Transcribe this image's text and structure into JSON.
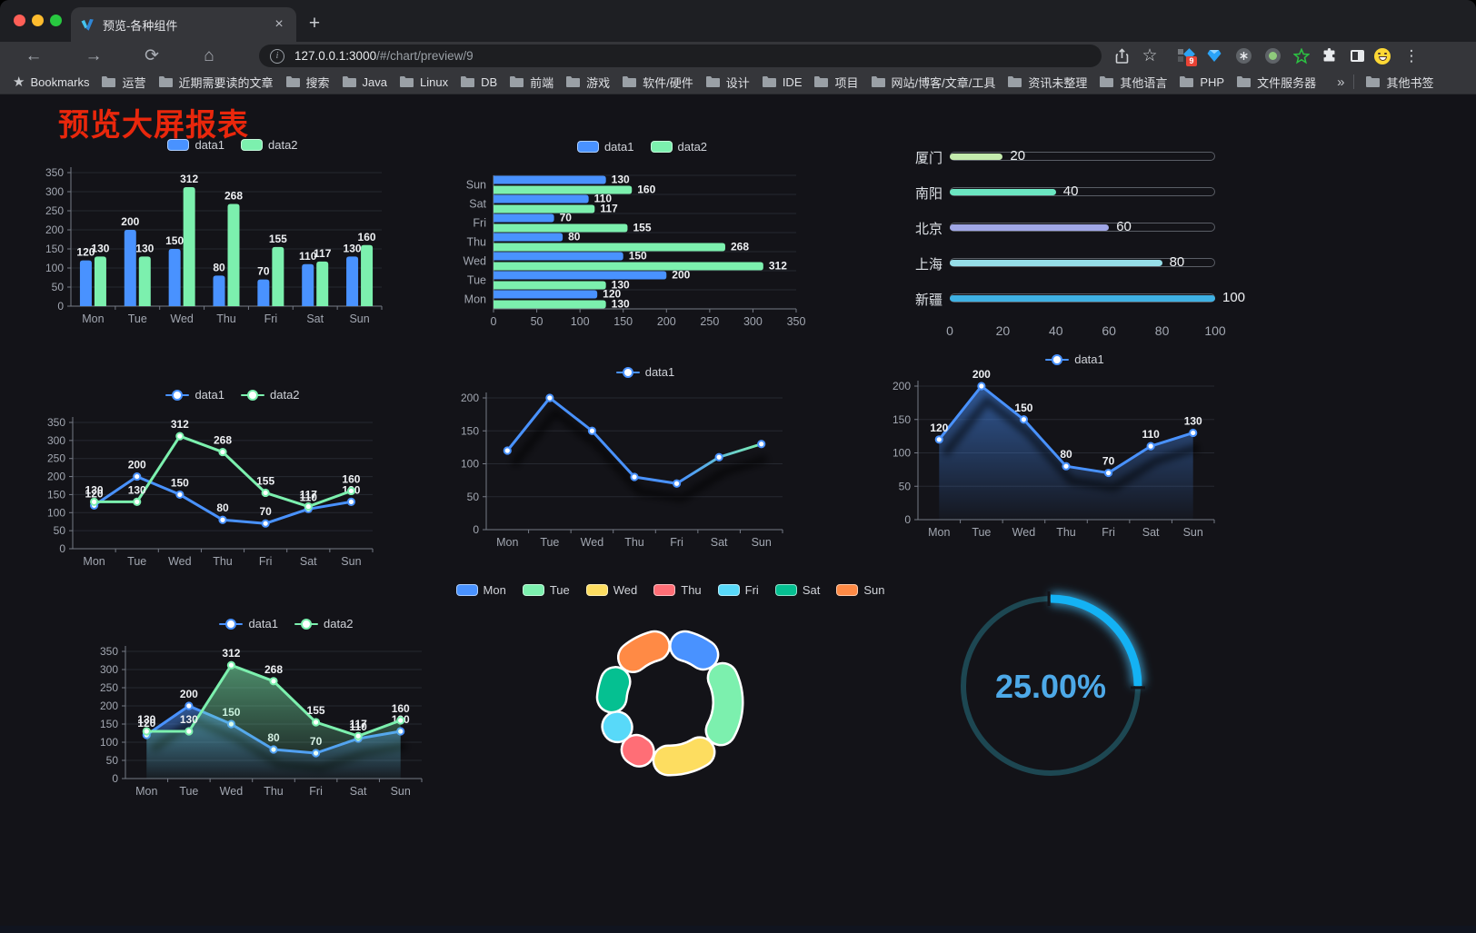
{
  "browser": {
    "tab_title": "预览-各种组件",
    "url_host": "127.0.0.1:3000",
    "url_path": "/#/chart/preview/9",
    "bookmarks_label": "Bookmarks",
    "bookmarks": [
      "运营",
      "近期需要读的文章",
      "搜索",
      "Java",
      "Linux",
      "DB",
      "前端",
      "游戏",
      "软件/硬件",
      "设计",
      "IDE",
      "项目",
      "网站/博客/文章/工具",
      "资讯未整理",
      "其他语言",
      "PHP",
      "文件服务器"
    ],
    "other_bookmarks_label": "其他书签",
    "extension_badge": "9",
    "icons": {
      "back": "←",
      "forward": "→",
      "reload": "⟳",
      "home": "⌂",
      "star": "☆",
      "kebab": "⋮",
      "plus": "+",
      "close": "×",
      "overflow": "»",
      "info": "i"
    }
  },
  "page": {
    "title": "预览大屏报表",
    "title_color": "#e9270c",
    "background": "#131318"
  },
  "palette": {
    "data1": "#4992ff",
    "data2": "#7cf0ae",
    "axis_text": "#a2a7b1",
    "value_text": "#eef0f3"
  },
  "charts": [
    {
      "id": "c1",
      "type": "bar-v",
      "categories": [
        "Mon",
        "Tue",
        "Wed",
        "Thu",
        "Fri",
        "Sat",
        "Sun"
      ],
      "series": [
        {
          "name": "data1",
          "color": "#4992ff",
          "values": [
            120,
            200,
            150,
            80,
            70,
            110,
            130
          ]
        },
        {
          "name": "data2",
          "color": "#7cf0ae",
          "values": [
            130,
            130,
            312,
            268,
            155,
            117,
            160
          ]
        }
      ],
      "ymax": 350,
      "yticks": [
        0,
        50,
        100,
        150,
        200,
        250,
        300,
        350
      ]
    },
    {
      "id": "c2",
      "type": "bar-h",
      "categories": [
        "Mon",
        "Tue",
        "Wed",
        "Thu",
        "Fri",
        "Sat",
        "Sun"
      ],
      "series": [
        {
          "name": "data1",
          "color": "#4992ff",
          "values": [
            120,
            200,
            150,
            80,
            70,
            110,
            130
          ]
        },
        {
          "name": "data2",
          "color": "#7cf0ae",
          "values": [
            130,
            130,
            312,
            268,
            155,
            117,
            160
          ]
        }
      ],
      "xmax": 350,
      "xticks": [
        0,
        50,
        100,
        150,
        200,
        250,
        300,
        350
      ]
    },
    {
      "id": "c3",
      "type": "progress",
      "max": 100,
      "xticks": [
        0,
        20,
        40,
        60,
        80,
        100
      ],
      "rows": [
        {
          "label": "厦门",
          "value": 20,
          "color": "#c4ebad"
        },
        {
          "label": "南阳",
          "value": 40,
          "color": "#6be6c1"
        },
        {
          "label": "北京",
          "value": 60,
          "color": "#a0a7e6"
        },
        {
          "label": "上海",
          "value": 80,
          "color": "#96dee8"
        },
        {
          "label": "新疆",
          "value": 100,
          "color": "#3fb1e3"
        }
      ]
    },
    {
      "id": "c4",
      "type": "line",
      "categories": [
        "Mon",
        "Tue",
        "Wed",
        "Thu",
        "Fri",
        "Sat",
        "Sun"
      ],
      "series": [
        {
          "name": "data1",
          "color": "#4992ff",
          "values": [
            120,
            200,
            150,
            80,
            70,
            110,
            130
          ],
          "labels": true
        },
        {
          "name": "data2",
          "color": "#7cf0ae",
          "values": [
            130,
            130,
            312,
            268,
            155,
            117,
            160
          ],
          "labels": true
        }
      ],
      "ymax": 350,
      "yticks": [
        0,
        50,
        100,
        150,
        200,
        250,
        300,
        350
      ]
    },
    {
      "id": "c5",
      "type": "line",
      "categories": [
        "Mon",
        "Tue",
        "Wed",
        "Thu",
        "Fri",
        "Sat",
        "Sun"
      ],
      "series": [
        {
          "name": "data1",
          "color": "#4992ff",
          "gradient_to": "#7cf0ae",
          "values": [
            120,
            200,
            150,
            80,
            70,
            110,
            130
          ],
          "labels": false,
          "shadow": true
        }
      ],
      "ymax": 200,
      "yticks": [
        0,
        50,
        100,
        150,
        200
      ]
    },
    {
      "id": "c6",
      "type": "line",
      "categories": [
        "Mon",
        "Tue",
        "Wed",
        "Thu",
        "Fri",
        "Sat",
        "Sun"
      ],
      "series": [
        {
          "name": "data1",
          "color": "#4992ff",
          "values": [
            120,
            200,
            150,
            80,
            70,
            110,
            130
          ],
          "labels": true,
          "area": true,
          "shadow": true
        }
      ],
      "ymax": 200,
      "yticks": [
        0,
        50,
        100,
        150,
        200
      ]
    },
    {
      "id": "c7",
      "type": "line",
      "categories": [
        "Mon",
        "Tue",
        "Wed",
        "Thu",
        "Fri",
        "Sat",
        "Sun"
      ],
      "series": [
        {
          "name": "data1",
          "color": "#4992ff",
          "values": [
            120,
            200,
            150,
            80,
            70,
            110,
            130
          ],
          "labels": true,
          "area": true,
          "shadow": true
        },
        {
          "name": "data2",
          "color": "#7cf0ae",
          "values": [
            130,
            130,
            312,
            268,
            155,
            117,
            160
          ],
          "labels": true,
          "area": true
        }
      ],
      "ymax": 350,
      "yticks": [
        0,
        50,
        100,
        150,
        200,
        250,
        300,
        350
      ]
    },
    {
      "id": "c8",
      "type": "pie",
      "items": [
        {
          "label": "Mon",
          "value": 120,
          "color": "#4992ff"
        },
        {
          "label": "Tue",
          "value": 200,
          "color": "#7cf0ae"
        },
        {
          "label": "Wed",
          "value": 150,
          "color": "#fddd60"
        },
        {
          "label": "Thu",
          "value": 80,
          "color": "#ff6e76"
        },
        {
          "label": "Fri",
          "value": 70,
          "color": "#58d9f9"
        },
        {
          "label": "Sat",
          "value": 110,
          "color": "#05c091"
        },
        {
          "label": "Sun",
          "value": 130,
          "color": "#ff8a45"
        }
      ]
    },
    {
      "id": "c9",
      "type": "gauge",
      "value": 25,
      "display": "25.00%",
      "arc_color": "#14b2f4",
      "track_color": "#1d4752",
      "text_color": "#4da9e8"
    }
  ]
}
